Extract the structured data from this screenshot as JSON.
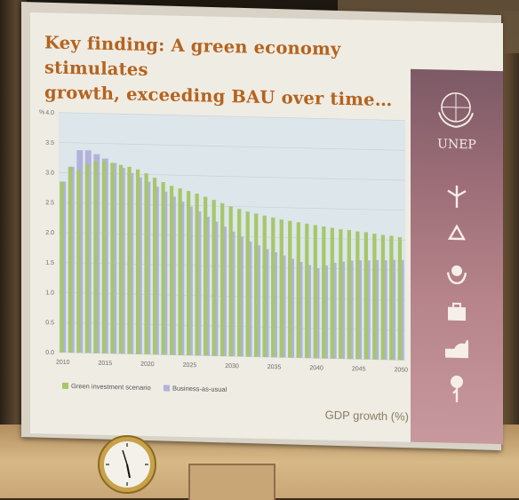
{
  "slide": {
    "title_line1": "Key finding: A green economy stimulates",
    "title_line2": "growth, exceeding BAU over time…",
    "caption": "GDP growth (%)",
    "logo_text": "UNEP"
  },
  "sidebar_icons": [
    "windmill-icon",
    "recycle-icon",
    "earth-hands-icon",
    "briefcase-icon",
    "factory-icon",
    "tree-icon"
  ],
  "colors": {
    "green": "#a6c76a",
    "bau": "#b2b2da",
    "title": "#b5631e",
    "sidebar": "#9d6e78"
  },
  "chart_data": {
    "type": "bar",
    "ylabel": "%",
    "ylim": [
      0,
      4.0
    ],
    "yticks": [
      "0.0",
      "0.5",
      "1.0",
      "1.5",
      "2.0",
      "2.5",
      "3.0",
      "3.5",
      "4.0"
    ],
    "xticks": [
      "2010",
      "2015",
      "2020",
      "2025",
      "2030",
      "2035",
      "2040",
      "2045",
      "2050"
    ],
    "categories": [
      2010,
      2011,
      2012,
      2013,
      2014,
      2015,
      2016,
      2017,
      2018,
      2019,
      2020,
      2021,
      2022,
      2023,
      2024,
      2025,
      2026,
      2027,
      2028,
      2029,
      2030,
      2031,
      2032,
      2033,
      2034,
      2035,
      2036,
      2037,
      2038,
      2039,
      2040,
      2041,
      2042,
      2043,
      2044,
      2045,
      2046,
      2047,
      2048,
      2049,
      2050
    ],
    "series": [
      {
        "name": "Green investment scenario",
        "values": [
          2.85,
          3.1,
          3.05,
          3.15,
          3.2,
          3.2,
          3.18,
          3.15,
          3.12,
          3.08,
          3.02,
          2.95,
          2.88,
          2.82,
          2.78,
          2.74,
          2.7,
          2.65,
          2.6,
          2.55,
          2.5,
          2.46,
          2.42,
          2.39,
          2.36,
          2.33,
          2.3,
          2.28,
          2.26,
          2.24,
          2.22,
          2.2,
          2.18,
          2.16,
          2.15,
          2.13,
          2.12,
          2.1,
          2.08,
          2.07,
          2.05
        ]
      },
      {
        "name": "Business-as-usual",
        "values": [
          2.85,
          3.1,
          3.38,
          3.38,
          3.32,
          3.25,
          3.18,
          3.1,
          3.02,
          2.95,
          2.88,
          2.8,
          2.72,
          2.64,
          2.56,
          2.48,
          2.4,
          2.32,
          2.24,
          2.16,
          2.08,
          2.0,
          1.92,
          1.86,
          1.8,
          1.75,
          1.7,
          1.65,
          1.6,
          1.55,
          1.5,
          1.55,
          1.6,
          1.62,
          1.64,
          1.65,
          1.65,
          1.66,
          1.66,
          1.67,
          1.67
        ]
      }
    ],
    "legend": [
      "Green investment scenario",
      "Business-as-usual"
    ],
    "legend_position": "bottom-left",
    "grid": true
  }
}
